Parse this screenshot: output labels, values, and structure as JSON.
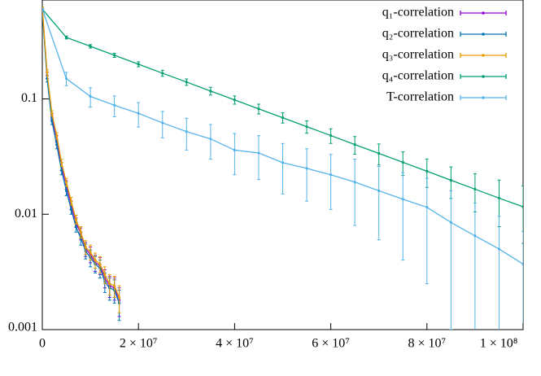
{
  "chart_data": {
    "type": "line",
    "ylog": true,
    "legend": "upper right",
    "xlim": [
      0,
      100000000
    ],
    "ylim": [
      0.001,
      0.72
    ],
    "xticks": [
      0,
      {
        "value": 20000000,
        "label": "2 × 10⁷"
      },
      {
        "value": 40000000,
        "label": "4 × 10⁷"
      },
      {
        "value": 60000000,
        "label": "6 × 10⁷"
      },
      {
        "value": 80000000,
        "label": "8 × 10⁷"
      },
      {
        "value": 100000000,
        "label": "1 × 10⁸"
      }
    ],
    "yticks": [
      0.001,
      0.01,
      0.1
    ],
    "series": [
      {
        "name": "q₁-correlation",
        "color": "#9400d3",
        "x": [
          0,
          1000000,
          2000000,
          3000000,
          4000000,
          5000000,
          6000000,
          7000000,
          8000000,
          9000000,
          10000000,
          11000000,
          12000000,
          13000000,
          14000000,
          15000000,
          16000000
        ],
        "values": [
          0.6,
          0.16,
          0.07,
          0.045,
          0.026,
          0.018,
          0.012,
          0.0085,
          0.0068,
          0.005,
          0.0045,
          0.0038,
          0.0036,
          0.0028,
          0.0024,
          0.0023,
          0.0018
        ],
        "errors": [
          0.01,
          0.01,
          0.004,
          0.003,
          0.002,
          0.0015,
          0.001,
          0.0008,
          0.0008,
          0.0007,
          0.0007,
          0.0006,
          0.0006,
          0.0005,
          0.0005,
          0.0005,
          0.0005
        ]
      },
      {
        "name": "q₂-correlation",
        "color": "#0072b2",
        "x": [
          0,
          1000000,
          2000000,
          3000000,
          4000000,
          5000000,
          6000000,
          7000000,
          8000000,
          9000000,
          10000000,
          11000000,
          12000000,
          13000000,
          14000000,
          15000000,
          16000000
        ],
        "values": [
          0.58,
          0.15,
          0.064,
          0.04,
          0.024,
          0.016,
          0.011,
          0.0078,
          0.0062,
          0.0048,
          0.0042,
          0.0037,
          0.0034,
          0.0026,
          0.0023,
          0.0022,
          0.0017
        ],
        "errors": [
          0.01,
          0.01,
          0.004,
          0.003,
          0.002,
          0.0015,
          0.001,
          0.0008,
          0.0008,
          0.0007,
          0.0007,
          0.0006,
          0.0006,
          0.0005,
          0.0005,
          0.0005,
          0.0005
        ]
      },
      {
        "name": "q₃-correlation",
        "color": "#e69f00",
        "x": [
          0,
          1000000,
          2000000,
          3000000,
          4000000,
          5000000,
          6000000,
          7000000,
          8000000,
          9000000,
          10000000,
          11000000,
          12000000,
          13000000,
          14000000,
          15000000,
          16000000
        ],
        "values": [
          0.62,
          0.17,
          0.075,
          0.048,
          0.028,
          0.019,
          0.013,
          0.009,
          0.007,
          0.0052,
          0.0047,
          0.004,
          0.0037,
          0.003,
          0.0025,
          0.0024,
          0.0019
        ],
        "errors": [
          0.01,
          0.01,
          0.004,
          0.003,
          0.002,
          0.0015,
          0.001,
          0.0008,
          0.0008,
          0.0007,
          0.0007,
          0.0006,
          0.0006,
          0.0005,
          0.0005,
          0.0005,
          0.0005
        ]
      },
      {
        "name": "q₄-correlation",
        "color": "#009e73",
        "x": [
          0,
          5000000,
          10000000,
          15000000,
          20000000,
          25000000,
          30000000,
          35000000,
          40000000,
          45000000,
          50000000,
          55000000,
          60000000,
          65000000,
          70000000,
          75000000,
          80000000,
          85000000,
          90000000,
          95000000,
          100000000
        ],
        "values": [
          0.6,
          0.341,
          0.286,
          0.239,
          0.2,
          0.167,
          0.14,
          0.117,
          0.098,
          0.082,
          0.0687,
          0.0575,
          0.0481,
          0.0402,
          0.0337,
          0.0282,
          0.0236,
          0.0197,
          0.0165,
          0.0138,
          0.0116
        ],
        "errors": [
          0.01,
          0.01,
          0.01,
          0.01,
          0.01,
          0.01,
          0.009,
          0.009,
          0.008,
          0.008,
          0.007,
          0.007,
          0.007,
          0.007,
          0.007,
          0.0065,
          0.0065,
          0.006,
          0.006,
          0.006,
          0.006
        ]
      },
      {
        "name": "T-correlation",
        "color": "#56b4e9",
        "x": [
          0,
          5000000,
          10000000,
          15000000,
          20000000,
          25000000,
          30000000,
          35000000,
          40000000,
          45000000,
          50000000,
          55000000,
          60000000,
          65000000,
          70000000,
          75000000,
          80000000,
          85000000,
          90000000,
          95000000,
          100000000
        ],
        "values": [
          0.6,
          0.15,
          0.105,
          0.088,
          0.075,
          0.062,
          0.052,
          0.045,
          0.036,
          0.034,
          0.028,
          0.025,
          0.022,
          0.019,
          0.016,
          0.0135,
          0.0115,
          0.0085,
          0.0065,
          0.005,
          0.0037
        ],
        "errors": [
          0.01,
          0.02,
          0.02,
          0.018,
          0.018,
          0.016,
          0.016,
          0.015,
          0.014,
          0.014,
          0.013,
          0.012,
          0.011,
          0.011,
          0.01,
          0.0095,
          0.009,
          0.0075,
          0.006,
          0.0046,
          0.0034
        ]
      }
    ]
  }
}
